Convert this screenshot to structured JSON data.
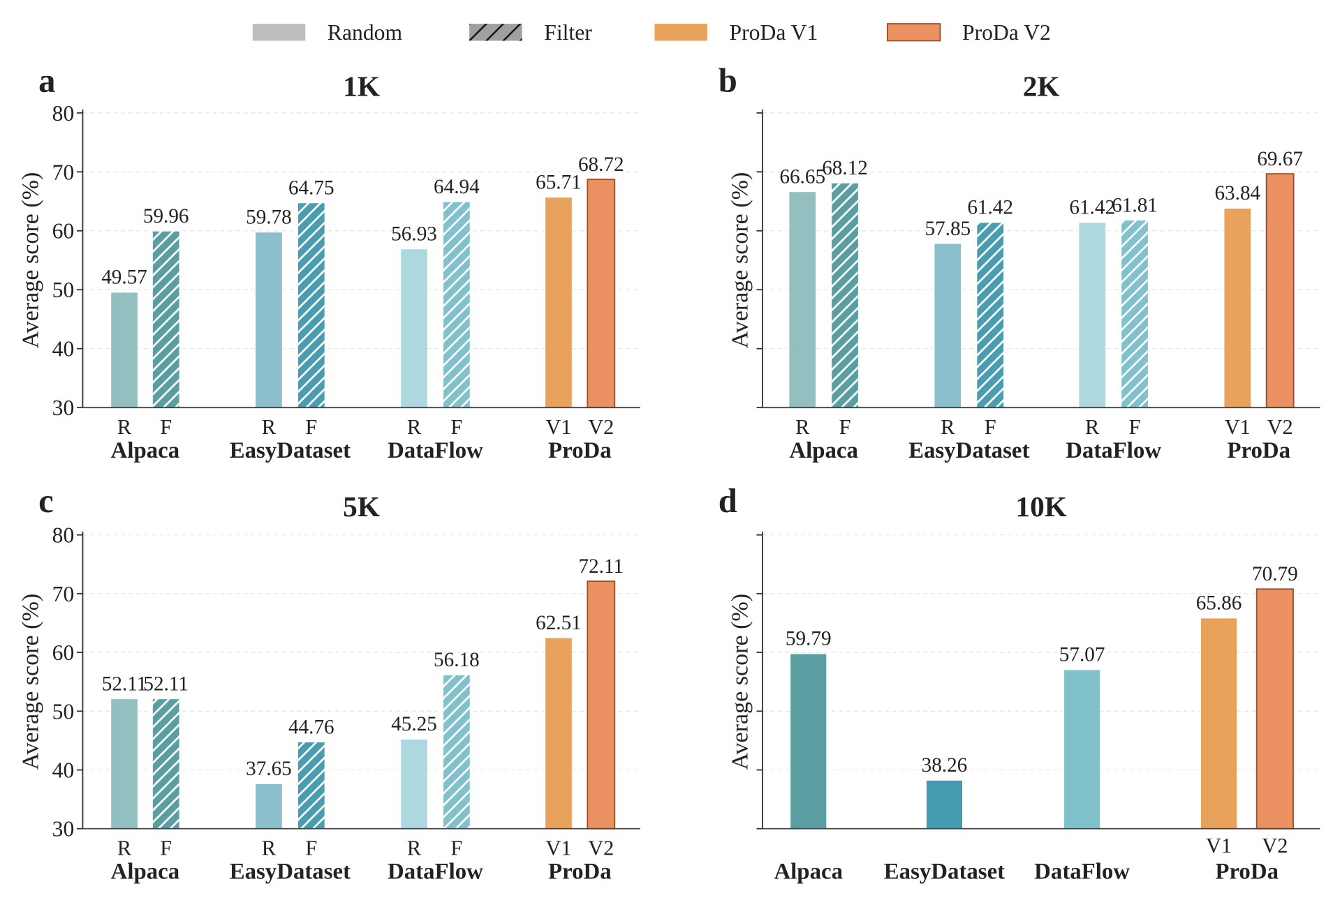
{
  "legend": [
    {
      "label": "Random",
      "color": "#bdbdbd",
      "hatch": false
    },
    {
      "label": "Filter",
      "color": "#a0a0a0",
      "hatch": true
    },
    {
      "label": "ProDa V1",
      "color": "#e8a25c",
      "hatch": false
    },
    {
      "label": "ProDa V2",
      "color": "#ec9262",
      "hatch": false,
      "edge": "#9a4e2c"
    }
  ],
  "chart_data": [
    {
      "type": "bar",
      "panel": "a",
      "title": "1K",
      "ylabel": "Average score (%)",
      "ylim": [
        30,
        80
      ],
      "yticks": [
        30,
        40,
        50,
        60,
        70,
        80
      ],
      "show_tick_labels": true,
      "grid": true,
      "groups": [
        {
          "name": "Alpaca",
          "bars": [
            {
              "label": "R",
              "value": 49.57,
              "color": "#94bfc1",
              "hatch": false
            },
            {
              "label": "F",
              "value": 59.96,
              "color": "#5a9ea1",
              "hatch": true
            }
          ]
        },
        {
          "name": "EasyDataset",
          "bars": [
            {
              "label": "R",
              "value": 59.78,
              "color": "#8bbfcb",
              "hatch": false
            },
            {
              "label": "F",
              "value": 64.75,
              "color": "#4a9cb0",
              "hatch": true
            }
          ]
        },
        {
          "name": "DataFlow",
          "bars": [
            {
              "label": "R",
              "value": 56.93,
              "color": "#aed8e0",
              "hatch": false
            },
            {
              "label": "F",
              "value": 64.94,
              "color": "#80c1cc",
              "hatch": true
            }
          ]
        },
        {
          "name": "ProDa",
          "bars": [
            {
              "label": "V1",
              "value": 65.71,
              "color": "#e8a25c",
              "hatch": false
            },
            {
              "label": "V2",
              "value": 68.72,
              "color": "#ec9262",
              "hatch": false,
              "edge": "#9a4e2c"
            }
          ]
        }
      ]
    },
    {
      "type": "bar",
      "panel": "b",
      "title": "2K",
      "ylabel": "Average score (%)",
      "ylim": [
        30,
        80
      ],
      "yticks": [
        30,
        40,
        50,
        60,
        70,
        80
      ],
      "show_tick_labels": false,
      "grid": true,
      "groups": [
        {
          "name": "Alpaca",
          "bars": [
            {
              "label": "R",
              "value": 66.65,
              "color": "#94bfc1",
              "hatch": false
            },
            {
              "label": "F",
              "value": 68.12,
              "color": "#5a9ea1",
              "hatch": true
            }
          ]
        },
        {
          "name": "EasyDataset",
          "bars": [
            {
              "label": "R",
              "value": 57.85,
              "color": "#8bbfcb",
              "hatch": false
            },
            {
              "label": "F",
              "value": 61.42,
              "color": "#4a9cb0",
              "hatch": true
            }
          ]
        },
        {
          "name": "DataFlow",
          "bars": [
            {
              "label": "R",
              "value": 61.42,
              "color": "#aed8e0",
              "hatch": false
            },
            {
              "label": "F",
              "value": 61.81,
              "color": "#80c1cc",
              "hatch": true
            }
          ]
        },
        {
          "name": "ProDa",
          "bars": [
            {
              "label": "V1",
              "value": 63.84,
              "color": "#e8a25c",
              "hatch": false
            },
            {
              "label": "V2",
              "value": 69.67,
              "color": "#ec9262",
              "hatch": false,
              "edge": "#9a4e2c"
            }
          ]
        }
      ]
    },
    {
      "type": "bar",
      "panel": "c",
      "title": "5K",
      "ylabel": "Average score (%)",
      "ylim": [
        30,
        80
      ],
      "yticks": [
        30,
        40,
        50,
        60,
        70,
        80
      ],
      "show_tick_labels": true,
      "grid": true,
      "groups": [
        {
          "name": "Alpaca",
          "bars": [
            {
              "label": "R",
              "value": 52.11,
              "color": "#94bfc1",
              "hatch": false
            },
            {
              "label": "F",
              "value": 52.11,
              "color": "#5a9ea1",
              "hatch": true
            }
          ]
        },
        {
          "name": "EasyDataset",
          "bars": [
            {
              "label": "R",
              "value": 37.65,
              "color": "#8bbfcb",
              "hatch": false
            },
            {
              "label": "F",
              "value": 44.76,
              "color": "#4a9cb0",
              "hatch": true
            }
          ]
        },
        {
          "name": "DataFlow",
          "bars": [
            {
              "label": "R",
              "value": 45.25,
              "color": "#aed8e0",
              "hatch": false
            },
            {
              "label": "F",
              "value": 56.18,
              "color": "#80c1cc",
              "hatch": true
            }
          ]
        },
        {
          "name": "ProDa",
          "bars": [
            {
              "label": "V1",
              "value": 62.51,
              "color": "#e8a25c",
              "hatch": false
            },
            {
              "label": "V2",
              "value": 72.11,
              "color": "#ec9262",
              "hatch": false,
              "edge": "#9a4e2c"
            }
          ]
        }
      ]
    },
    {
      "type": "bar",
      "panel": "d",
      "title": "10K",
      "ylabel": "Average score (%)",
      "ylim": [
        30,
        80
      ],
      "yticks": [
        30,
        40,
        50,
        60,
        70,
        80
      ],
      "show_tick_labels": false,
      "grid": true,
      "groups": [
        {
          "name": "Alpaca",
          "bars": [
            {
              "label": "",
              "value": 59.79,
              "color": "#5a9ea1",
              "hatch": false
            }
          ]
        },
        {
          "name": "EasyDataset",
          "bars": [
            {
              "label": "",
              "value": 38.26,
              "color": "#469bb0",
              "hatch": false
            }
          ]
        },
        {
          "name": "DataFlow",
          "bars": [
            {
              "label": "",
              "value": 57.07,
              "color": "#80c1cc",
              "hatch": false
            }
          ]
        },
        {
          "name": "ProDa",
          "bars": [
            {
              "label": "V1",
              "value": 65.86,
              "color": "#e8a25c",
              "hatch": false
            },
            {
              "label": "V2",
              "value": 70.79,
              "color": "#ec9262",
              "hatch": false,
              "edge": "#9a4e2c"
            }
          ]
        }
      ]
    }
  ]
}
